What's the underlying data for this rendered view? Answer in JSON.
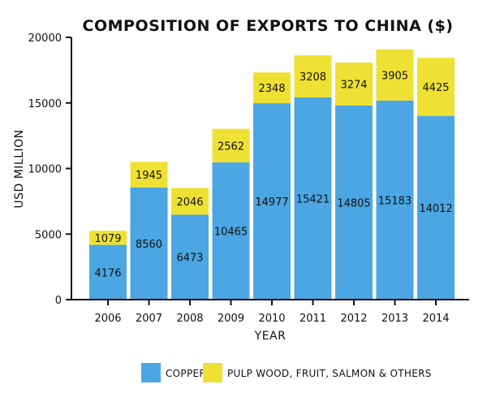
{
  "chart_data": {
    "type": "bar",
    "stacked": true,
    "title": "COMPOSITION OF EXPORTS TO CHINA ($)",
    "xlabel": "YEAR",
    "ylabel": "USD MILLION",
    "ylim": [
      0,
      20000
    ],
    "yticks": [
      0,
      5000,
      10000,
      15000,
      20000
    ],
    "categories": [
      "2006",
      "2007",
      "2008",
      "2009",
      "2010",
      "2011",
      "2012",
      "2013",
      "2014"
    ],
    "series": [
      {
        "name": "COPPER",
        "color": "#4ba6e3",
        "values": [
          4176,
          8560,
          6473,
          10465,
          14977,
          15421,
          14805,
          15183,
          14012
        ]
      },
      {
        "name": "PULP WOOD, FRUIT, SALMON & OTHERS",
        "color": "#efe133",
        "values": [
          1079,
          1945,
          2046,
          2562,
          2348,
          3208,
          3274,
          3905,
          4425
        ]
      }
    ],
    "legend_position": "bottom-center",
    "grid": false
  }
}
